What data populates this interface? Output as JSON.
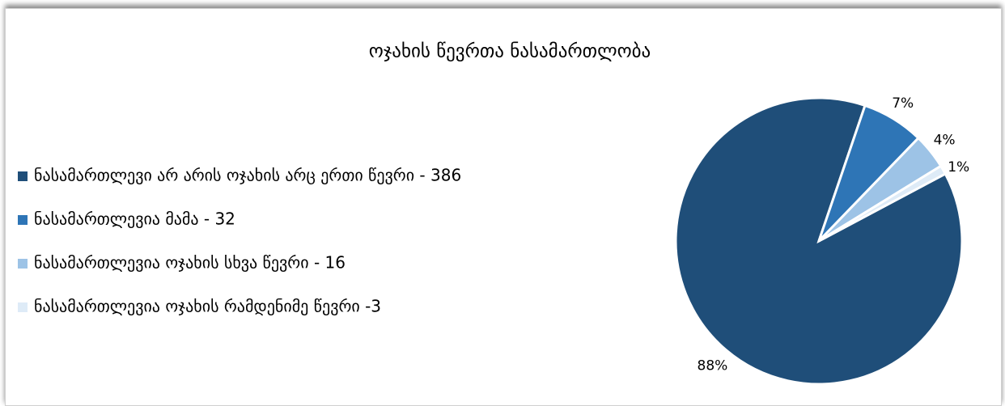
{
  "chart_data": {
    "type": "pie",
    "title": "ოჯახის წევრთა ნასამართლობა",
    "series": [
      {
        "name": "ნასამართლევი არ არის ოჯახის არც ერთი წევრი - 386",
        "color": "#1f4e79"
      },
      {
        "name": "ნასამართლევია მამა - 32",
        "color": "#2e75b6"
      },
      {
        "name": "ნასამართლევია ოჯახის სხვა წევრი - 16",
        "color": "#9dc3e6"
      },
      {
        "name": "ნასამართლევია ოჯახის რამდენიმე წევრი -3",
        "color": "#deebf7"
      }
    ],
    "values": [
      88,
      7,
      4,
      1
    ],
    "value_labels": [
      "88%",
      "7%",
      "4%",
      "1%"
    ],
    "legend": "left"
  }
}
